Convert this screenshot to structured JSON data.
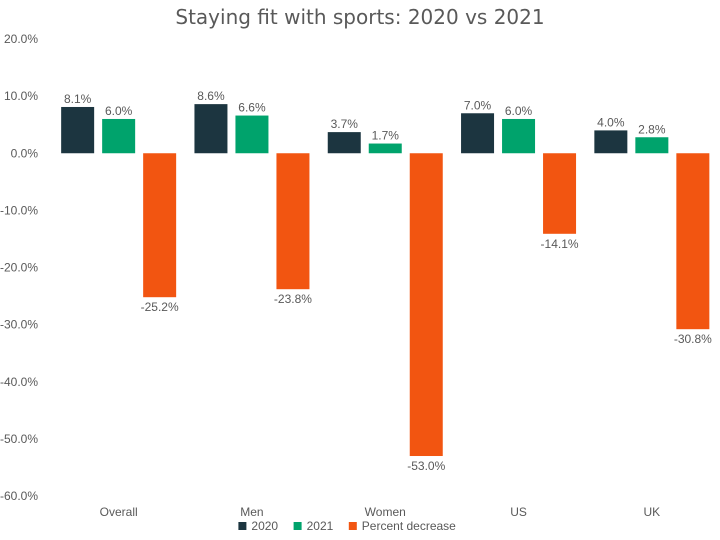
{
  "chart_data": {
    "type": "bar",
    "title": "Staying fit with sports: 2020 vs 2021",
    "categories": [
      "Overall",
      "Men",
      "Women",
      "US",
      "UK"
    ],
    "series": [
      {
        "name": "2020",
        "values": [
          8.1,
          8.6,
          3.7,
          7.0,
          4.0
        ],
        "color": "#1c3540"
      },
      {
        "name": "2021",
        "values": [
          6.0,
          6.6,
          1.7,
          6.0,
          2.8
        ],
        "color": "#00a36c"
      },
      {
        "name": "Percent decrease",
        "values": [
          -25.2,
          -23.8,
          -53.0,
          -14.1,
          -30.8
        ],
        "color": "#f25511"
      }
    ],
    "ylim": [
      -60,
      20
    ],
    "yticks": [
      20,
      10,
      0,
      -10,
      -20,
      -30,
      -40,
      -50,
      -60
    ],
    "tick_format": "percent_1dp",
    "grid": false,
    "legend": "bottom"
  }
}
